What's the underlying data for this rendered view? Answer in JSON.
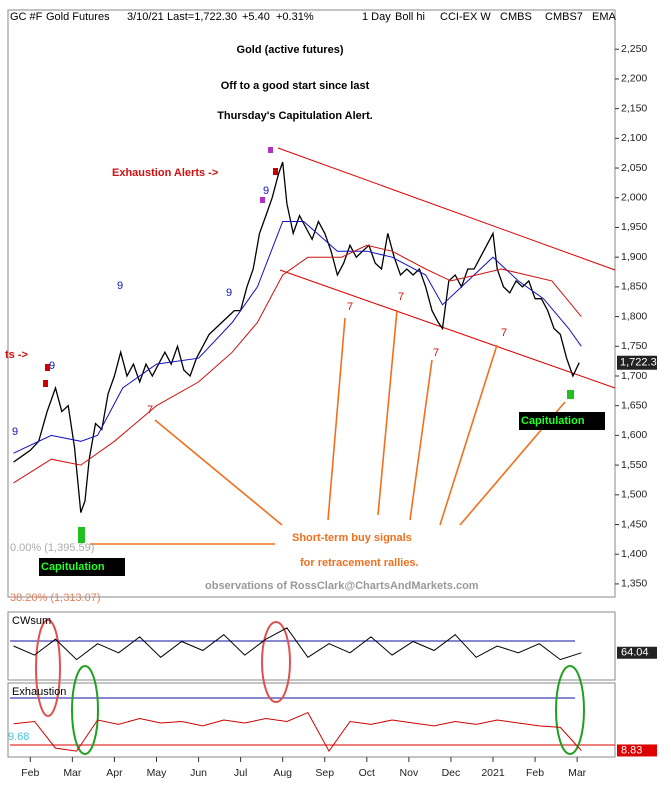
{
  "chart_data": [
    {
      "type": "line",
      "title": "Gold (active futures)",
      "subtitle": [
        "Off to a good start since last",
        "Thursday's Capitulation Alert."
      ],
      "header": [
        "GC #F",
        "Gold Futures",
        "3/10/21",
        "Last=1,722.30",
        "+5.40",
        "+0.31%",
        "1 Day",
        "Boll hi",
        "CCI-EX W",
        "CMBS",
        "CMBS7",
        "EMA"
      ],
      "series": [
        {
          "color": "#000000",
          "x": [
            0.6,
            0.8,
            1.0,
            1.2,
            1.4,
            1.6,
            1.75,
            1.9,
            2.05,
            2.2,
            2.3,
            2.4,
            2.55,
            2.7,
            2.85,
            3.0,
            3.15,
            3.3,
            3.45,
            3.6,
            3.75,
            3.9,
            4.05,
            4.2,
            4.35,
            4.5,
            4.65,
            4.8,
            4.95,
            5.1,
            5.25,
            5.4,
            5.55,
            5.7,
            5.85,
            6.0,
            6.15,
            6.3,
            6.45,
            6.6,
            6.75,
            6.9,
            7.0,
            7.1,
            7.25,
            7.4,
            7.55,
            7.7,
            7.85,
            8.0,
            8.15,
            8.3,
            8.45,
            8.6,
            8.75,
            8.9,
            9.05,
            9.2,
            9.35,
            9.5,
            9.65,
            9.8,
            9.95,
            10.1,
            10.25,
            10.4,
            10.55,
            10.7,
            10.8,
            10.95,
            11.1,
            11.25,
            11.4,
            11.55,
            11.7,
            11.85,
            12.0,
            12.1,
            12.25,
            12.4,
            12.55,
            12.7,
            12.85,
            13.0,
            13.15,
            13.3,
            13.45,
            13.6,
            13.75,
            13.9,
            14.05
          ],
          "values": [
            1555,
            1565,
            1575,
            1590,
            1640,
            1680,
            1640,
            1650,
            1580,
            1470,
            1490,
            1560,
            1620,
            1610,
            1670,
            1700,
            1740,
            1700,
            1720,
            1690,
            1720,
            1700,
            1720,
            1740,
            1720,
            1750,
            1710,
            1700,
            1730,
            1750,
            1770,
            1780,
            1790,
            1800,
            1810,
            1810,
            1850,
            1880,
            1940,
            1970,
            2000,
            2040,
            2060,
            1990,
            1940,
            1970,
            1950,
            1930,
            1960,
            1940,
            1910,
            1870,
            1890,
            1920,
            1900,
            1910,
            1920,
            1890,
            1880,
            1940,
            1900,
            1870,
            1880,
            1870,
            1880,
            1850,
            1810,
            1790,
            1780,
            1860,
            1870,
            1850,
            1880,
            1880,
            1900,
            1920,
            1940,
            1880,
            1850,
            1840,
            1860,
            1850,
            1860,
            1830,
            1830,
            1810,
            1780,
            1770,
            1730,
            1700,
            1722.3
          ]
        },
        {
          "color": "#1010c0",
          "x": [
            0.6,
            1.5,
            2.2,
            2.6,
            3.2,
            4,
            5,
            5.8,
            6.4,
            7,
            7.5,
            8.3,
            9,
            9.6,
            10.4,
            10.8,
            11.4,
            12,
            12.6,
            13.2,
            13.8,
            14.1
          ],
          "values": [
            1570,
            1600,
            1590,
            1600,
            1680,
            1720,
            1730,
            1790,
            1850,
            1960,
            1960,
            1910,
            1910,
            1900,
            1870,
            1820,
            1860,
            1900,
            1860,
            1830,
            1780,
            1750
          ]
        },
        {
          "color": "#d01010",
          "x": [
            0.6,
            1.5,
            2.2,
            3,
            4,
            5,
            5.8,
            6.4,
            7,
            7.6,
            8.4,
            9,
            9.6,
            10.4,
            11,
            11.6,
            12.2,
            12.8,
            13.4,
            14.1
          ],
          "values": [
            1520,
            1560,
            1550,
            1590,
            1650,
            1690,
            1740,
            1790,
            1870,
            1900,
            1900,
            1920,
            1910,
            1880,
            1860,
            1870,
            1880,
            1870,
            1860,
            1800
          ]
        }
      ],
      "last_price": {
        "value": 1722.3,
        "label": "1,722.3"
      },
      "xlim": [
        0.47,
        14.9
      ],
      "xticks": [
        {
          "value": 1,
          "label": "Feb"
        },
        {
          "value": 2,
          "label": "Mar"
        },
        {
          "value": 3,
          "label": "Apr"
        },
        {
          "value": 4,
          "label": "May"
        },
        {
          "value": 5,
          "label": "Jun"
        },
        {
          "value": 6,
          "label": "Jul"
        },
        {
          "value": 7,
          "label": "Aug"
        },
        {
          "value": 8,
          "label": "Sep"
        },
        {
          "value": 9,
          "label": "Oct"
        },
        {
          "value": 10,
          "label": "Nov"
        },
        {
          "value": 11,
          "label": "Dec"
        },
        {
          "value": 12,
          "label": "2021"
        },
        {
          "value": 13,
          "label": "Feb"
        },
        {
          "value": 14,
          "label": "Mar"
        }
      ],
      "ylim": [
        1328,
        2316
      ],
      "yticks": [
        {
          "value": 1350,
          "label": "1,350"
        },
        {
          "value": 1400,
          "label": "1,400"
        },
        {
          "value": 1450,
          "label": "1,450"
        },
        {
          "value": 1500,
          "label": "1,500"
        },
        {
          "value": 1550,
          "label": "1,550"
        },
        {
          "value": 1600,
          "label": "1,600"
        },
        {
          "value": 1650,
          "label": "1,650"
        },
        {
          "value": 1700,
          "label": "1,700"
        },
        {
          "value": 1750,
          "label": "1,750"
        },
        {
          "value": 1800,
          "label": "1,800"
        },
        {
          "value": 1850,
          "label": "1,850"
        },
        {
          "value": 1900,
          "label": "1,900"
        },
        {
          "value": 1950,
          "label": "1,950"
        },
        {
          "value": 2000,
          "label": "2,000"
        },
        {
          "value": 2050,
          "label": "2,050"
        },
        {
          "value": 2100,
          "label": "2,100"
        },
        {
          "value": 2150,
          "label": "2,150"
        },
        {
          "value": 2200,
          "label": "2,200"
        },
        {
          "value": 2250,
          "label": "2,250"
        }
      ],
      "annotations": [
        "Exhaustion Alerts ->",
        "ts ->",
        "Short-term buy signals",
        "for retracement rallies.",
        "observations of RossClark@ChartsAndMarkets.com",
        "Capitulation",
        "Capitulation",
        "0.00% (1,395.59)",
        "38.20% (1,313.07)"
      ],
      "counts": [
        "9",
        "9",
        "9",
        "9",
        "9",
        "7",
        "7",
        "7",
        "7",
        "7"
      ]
    },
    {
      "type": "line",
      "title": "CWsum",
      "x": [
        0.6,
        1.1,
        1.6,
        2.1,
        2.6,
        3.1,
        3.6,
        4.1,
        4.6,
        5.1,
        5.6,
        6.1,
        6.6,
        7.1,
        7.6,
        8.1,
        8.6,
        9.1,
        9.6,
        10.1,
        10.6,
        11.1,
        11.6,
        12.1,
        12.6,
        13.1,
        13.6,
        14.1
      ],
      "values": [
        70,
        62,
        76,
        58,
        72,
        64,
        78,
        60,
        74,
        66,
        80,
        62,
        76,
        86,
        60,
        72,
        64,
        78,
        62,
        74,
        66,
        80,
        60,
        70,
        64,
        72,
        58,
        64.04
      ],
      "color": "#000000",
      "last_label": "64.04",
      "ylim": [
        40,
        100
      ]
    },
    {
      "type": "line",
      "title": "Exhaustion",
      "x": [
        0.6,
        1.1,
        1.6,
        2.1,
        2.6,
        3.1,
        3.6,
        4.1,
        4.6,
        5.1,
        5.6,
        6.1,
        6.6,
        7.1,
        7.6,
        8.1,
        8.6,
        9.1,
        9.6,
        10.1,
        10.6,
        11.1,
        11.6,
        12.1,
        12.6,
        13.1,
        13.6,
        14.1
      ],
      "values": [
        45,
        48,
        12,
        8,
        50,
        44,
        52,
        46,
        48,
        42,
        50,
        46,
        52,
        48,
        60,
        8,
        48,
        44,
        50,
        46,
        42,
        48,
        44,
        50,
        46,
        42,
        40,
        8.83
      ],
      "color": "#cc0000",
      "last_label": "8.83",
      "left_label": "9.68",
      "ylim": [
        0,
        100
      ]
    }
  ]
}
